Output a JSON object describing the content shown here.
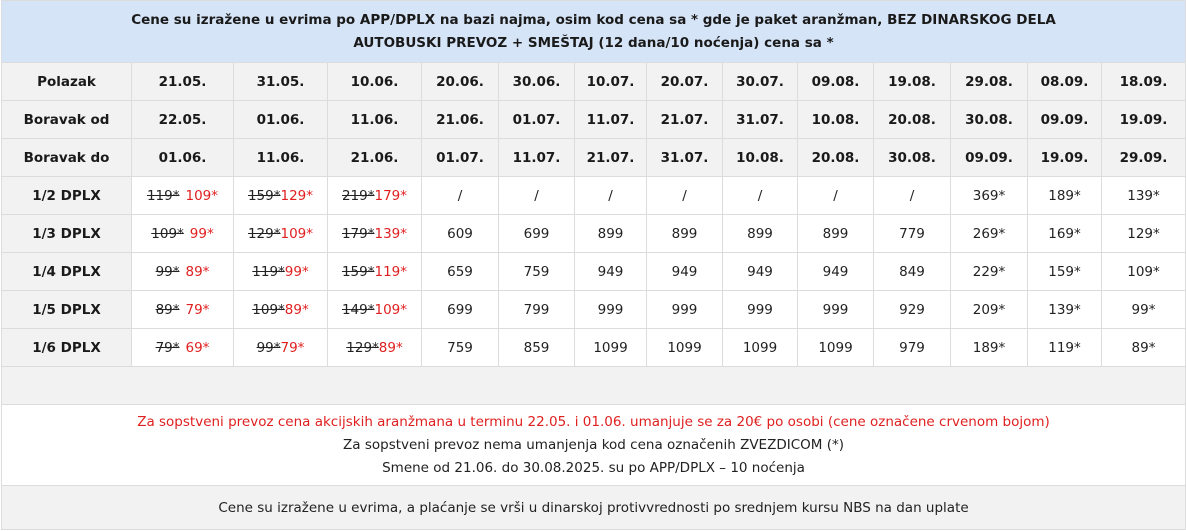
{
  "title": {
    "line1": "Cene su izražene u evrima po APP/DPLX na bazi najma, osim kod cena sa * gde je paket aranžman, BEZ DINARSKOG DELA",
    "line2": "AUTOBUSKI PREVOZ + SMEŠTAJ (12 dana/10 noćenja) cena sa *"
  },
  "header_rows": [
    {
      "label": "Polazak",
      "cells": [
        "21.05.",
        "31.05.",
        "10.06.",
        "20.06.",
        "30.06.",
        "10.07.",
        "20.07.",
        "30.07.",
        "09.08.",
        "19.08.",
        "29.08.",
        "08.09.",
        "18.09."
      ]
    },
    {
      "label": "Boravak od",
      "cells": [
        "22.05.",
        "01.06.",
        "11.06.",
        "21.06.",
        "01.07.",
        "11.07.",
        "21.07.",
        "31.07.",
        "10.08.",
        "20.08.",
        "30.08.",
        "09.09.",
        "19.09."
      ]
    },
    {
      "label": "Boravak do",
      "cells": [
        "01.06.",
        "11.06.",
        "21.06.",
        "01.07.",
        "11.07.",
        "21.07.",
        "31.07.",
        "10.08.",
        "20.08.",
        "30.08.",
        "09.09.",
        "19.09.",
        "29.09."
      ]
    }
  ],
  "price_rows": [
    {
      "label": "1/2 DPLX",
      "promo": [
        [
          "119*",
          "109*"
        ],
        [
          "159*",
          "129*"
        ],
        [
          "219*",
          "179*"
        ]
      ],
      "cells": [
        "/",
        "/",
        "/",
        "/",
        "/",
        "/",
        "/",
        "369*",
        "189*",
        "139*"
      ]
    },
    {
      "label": "1/3 DPLX",
      "promo": [
        [
          "109*",
          "99*"
        ],
        [
          "129*",
          "109*"
        ],
        [
          "179*",
          "139*"
        ]
      ],
      "cells": [
        "609",
        "699",
        "899",
        "899",
        "899",
        "899",
        "779",
        "269*",
        "169*",
        "129*"
      ]
    },
    {
      "label": "1/4 DPLX",
      "promo": [
        [
          "99*",
          "89*"
        ],
        [
          "119*",
          "99*"
        ],
        [
          "159*",
          "119*"
        ]
      ],
      "cells": [
        "659",
        "759",
        "949",
        "949",
        "949",
        "949",
        "849",
        "229*",
        "159*",
        "109*"
      ]
    },
    {
      "label": "1/5 DPLX",
      "promo": [
        [
          "89*",
          "79*"
        ],
        [
          "109*",
          "89*"
        ],
        [
          "149*",
          "109*"
        ]
      ],
      "cells": [
        "699",
        "799",
        "999",
        "999",
        "999",
        "999",
        "929",
        "209*",
        "139*",
        "99*"
      ]
    },
    {
      "label": "1/6 DPLX",
      "promo": [
        [
          "79*",
          "69*"
        ],
        [
          "99*",
          "79*"
        ],
        [
          "129*",
          "89*"
        ]
      ],
      "cells": [
        "759",
        "859",
        "1099",
        "1099",
        "1099",
        "1099",
        "979",
        "189*",
        "119*",
        "89*"
      ]
    }
  ],
  "notes": {
    "red": "Za sopstveni prevoz cena akcijskih aranžmana u terminu 22.05. i 01.06.  umanjuje se za 20€ po osobi (cene označene crvenom bojom)",
    "line2": "Za sopstveni prevoz nema umanjenja kod cena označenih ZVEZDICOM (*)",
    "line3": "Smene od 21.06. do 30.08.2025. su po APP/DPLX – 10 noćenja"
  },
  "footer": "Cene su izražene u evrima, a plaćanje se vrši u dinarskoj protivvrednosti po srednjem kursu NBS na dan uplate",
  "colors": {
    "title_bg": "#d6e4f7",
    "header_bg": "#f2f2f2",
    "discount_red": "#e02020",
    "border": "#dcdcdc"
  }
}
